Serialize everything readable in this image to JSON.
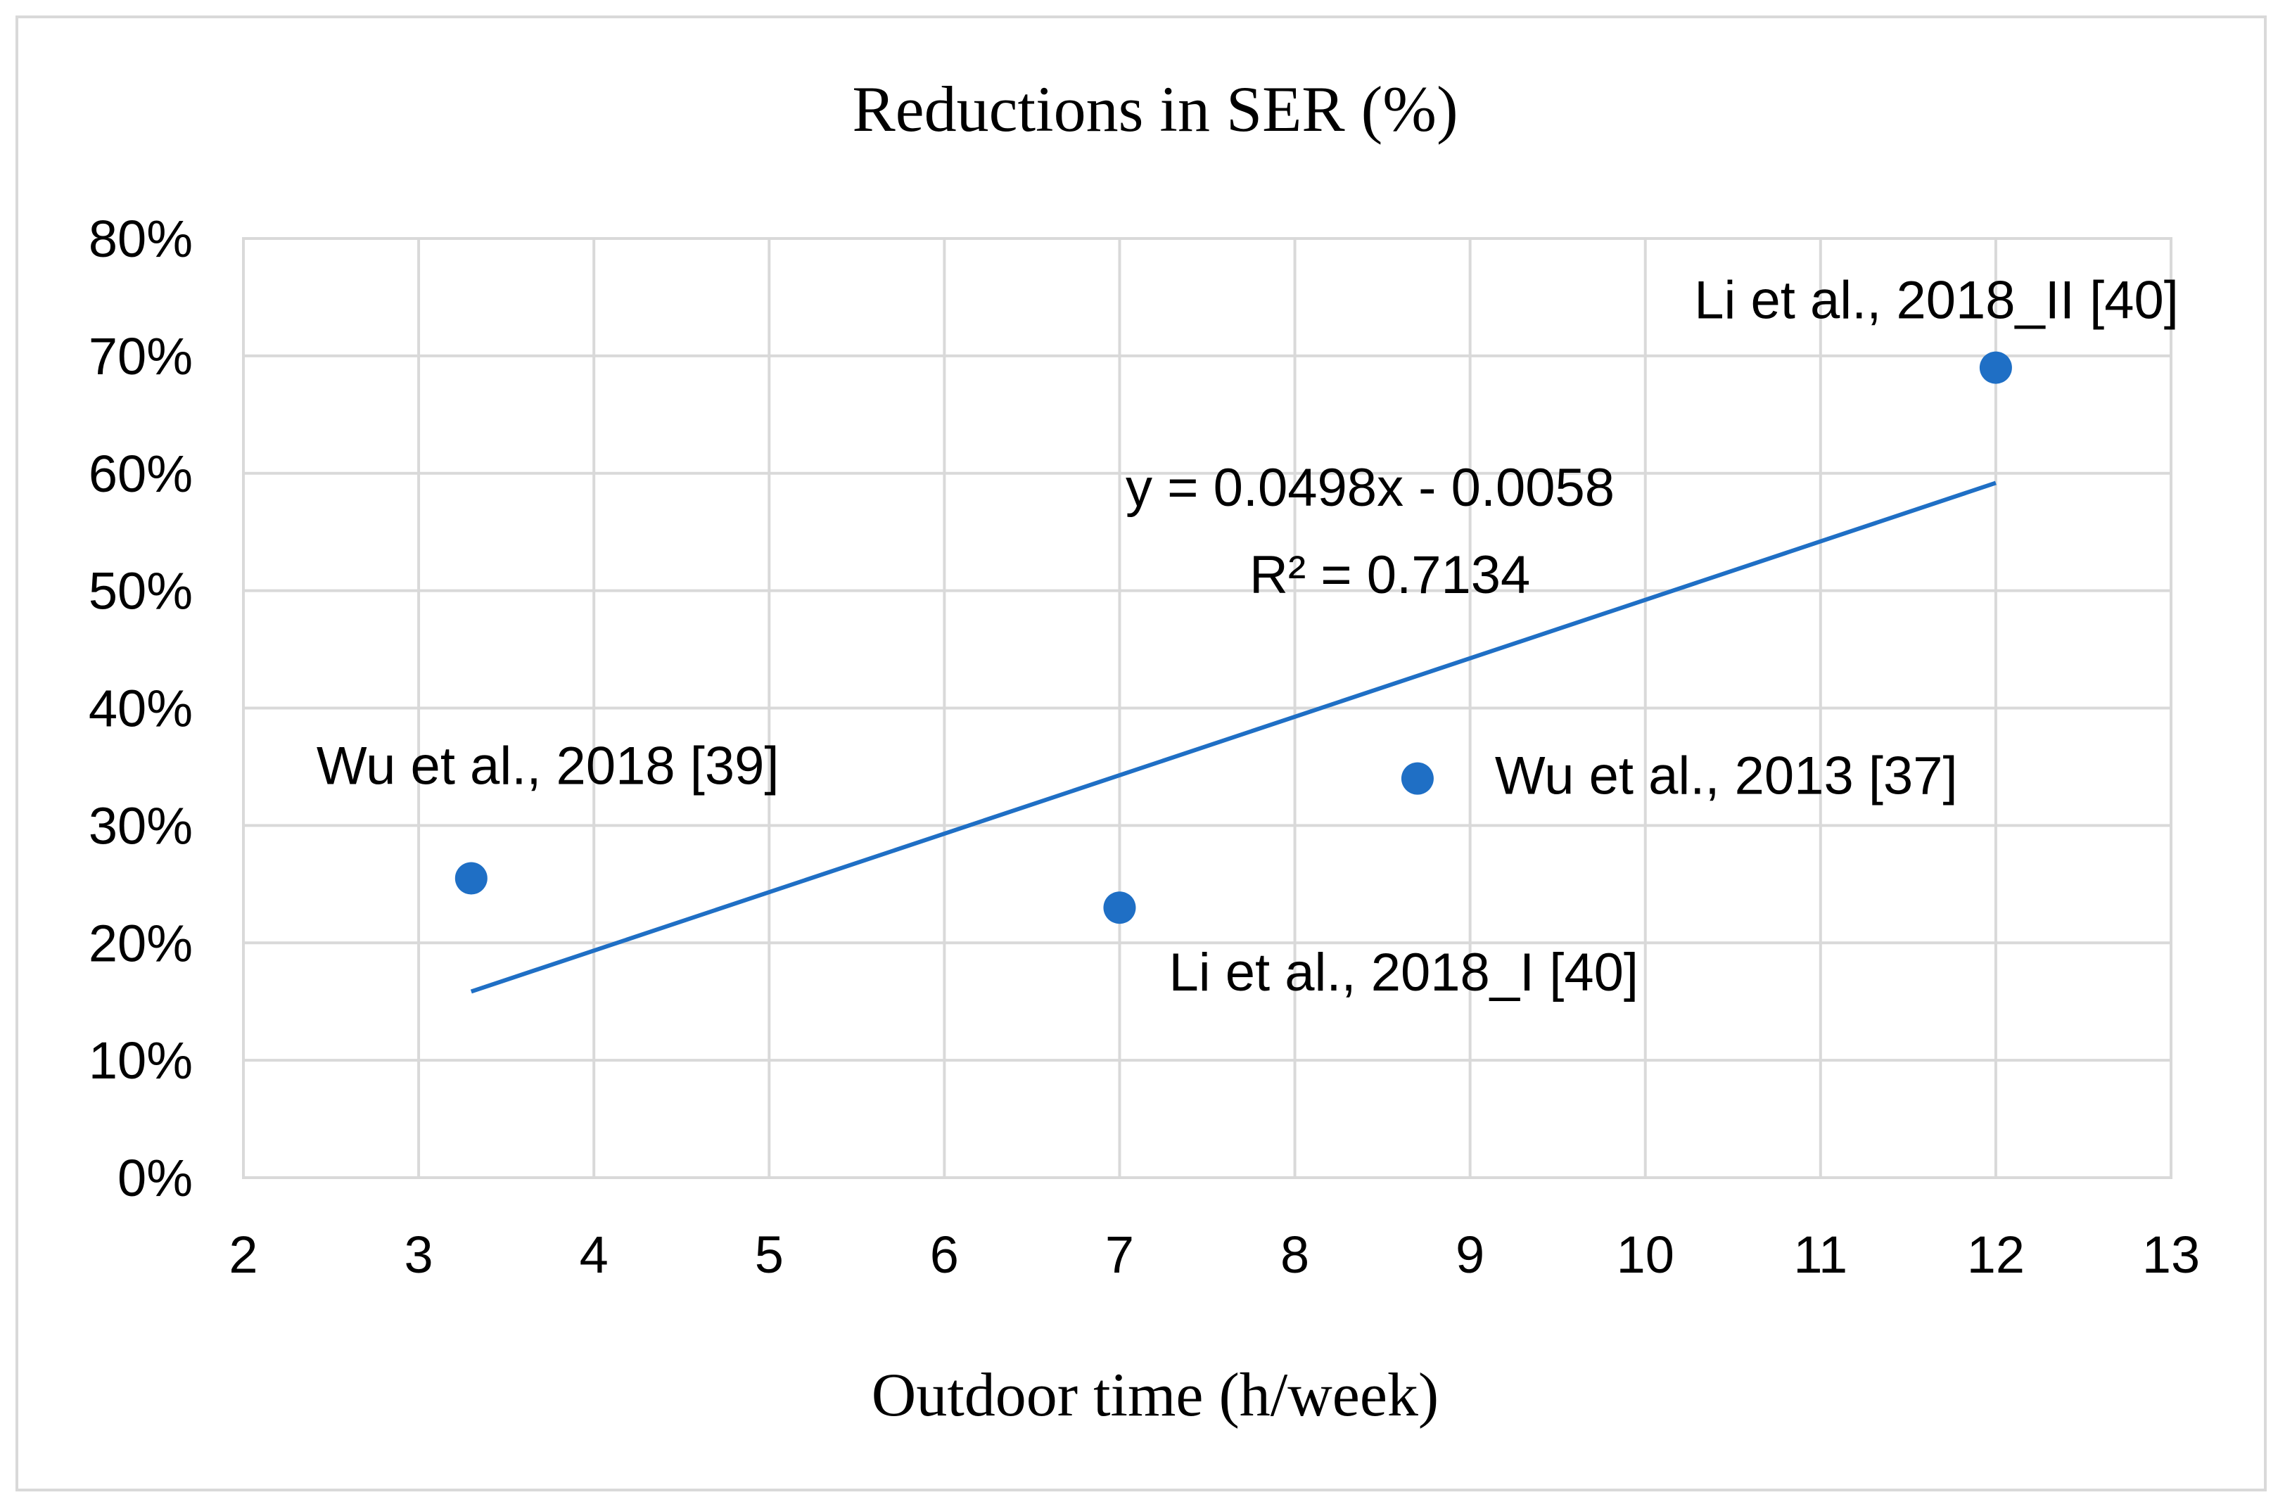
{
  "chart_data": {
    "type": "scatter",
    "title": "Reductions in SER  (%)",
    "xlabel": "Outdoor time (h/week)",
    "ylabel": "",
    "xlim": [
      2,
      13
    ],
    "ylim": [
      0,
      0.8
    ],
    "x_ticks": [
      "2",
      "3",
      "4",
      "5",
      "6",
      "7",
      "8",
      "9",
      "10",
      "11",
      "12",
      "13"
    ],
    "y_ticks": [
      "0%",
      "10%",
      "20%",
      "30%",
      "40%",
      "50%",
      "60%",
      "70%",
      "80%"
    ],
    "grid": true,
    "legend": "none",
    "series": [
      {
        "name": "Reductions in SER",
        "color": "#1f6fc5",
        "points": [
          {
            "x": 3.3,
            "y": 0.255,
            "label": "Wu et al., 2018 [39]"
          },
          {
            "x": 7.0,
            "y": 0.23,
            "label": "Li et al., 2018_I [40]"
          },
          {
            "x": 8.7,
            "y": 0.34,
            "label": "Wu et al., 2013 [37]"
          },
          {
            "x": 12.0,
            "y": 0.69,
            "label": "Li et al., 2018_II [40]"
          }
        ]
      }
    ],
    "trendline": {
      "type": "linear",
      "slope": 0.0498,
      "intercept": -0.0058,
      "x_range": [
        3.3,
        12.0
      ],
      "color": "#1f6fc5",
      "equation": "y = 0.0498x - 0.0058",
      "r_squared": "R² = 0.7134"
    }
  }
}
